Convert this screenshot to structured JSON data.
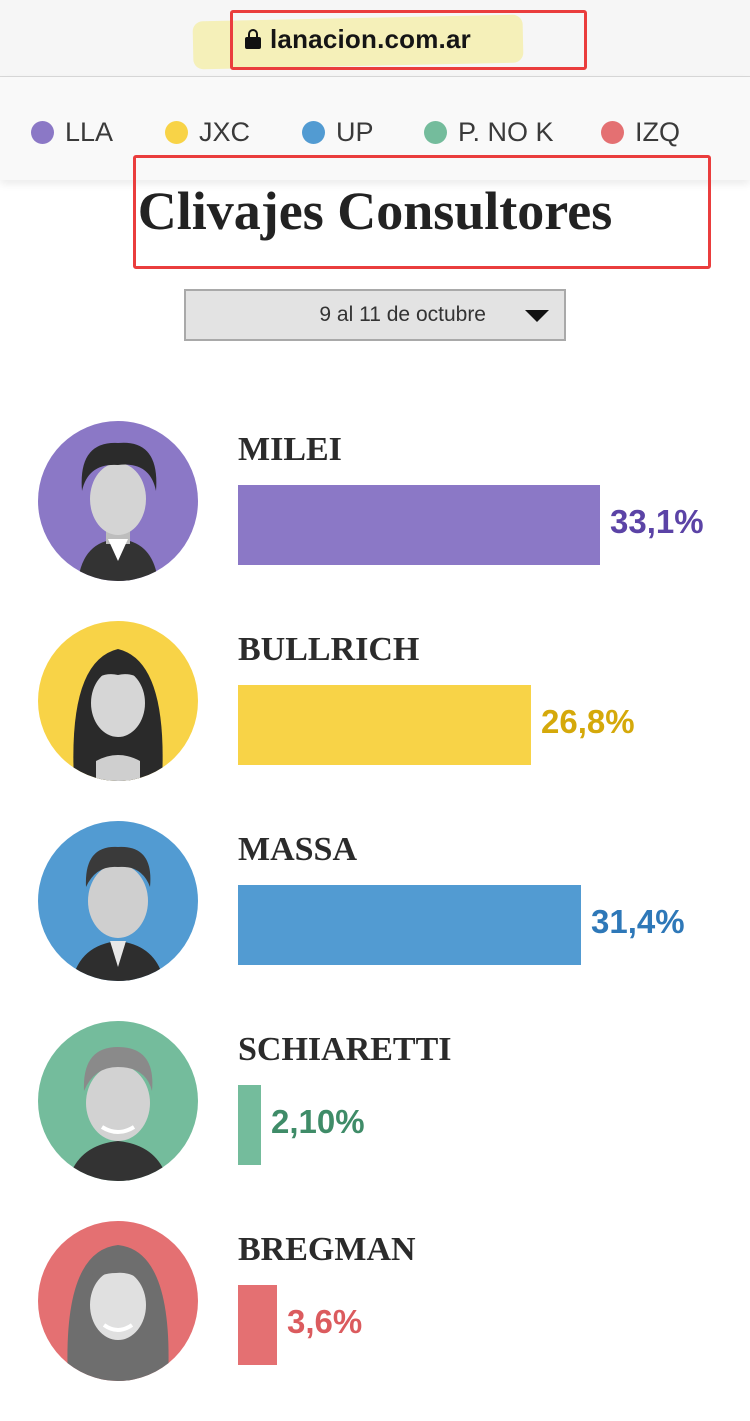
{
  "browser": {
    "url": "lanacion.com.ar"
  },
  "legend": [
    {
      "label": "LLA",
      "color": "#8b78c6"
    },
    {
      "label": "JXC",
      "color": "#f8d347"
    },
    {
      "label": "UP",
      "color": "#529bd2"
    },
    {
      "label": "P. NO K",
      "color": "#74bc9c"
    },
    {
      "label": "IZQ",
      "color": "#e47072"
    }
  ],
  "title": "Clivajes Consultores",
  "date_select": {
    "value": "9 al 11 de octubre"
  },
  "candidates": [
    {
      "name": "MILEI",
      "percent_label": "33,1%",
      "percent": 33.1,
      "bar_color": "#8b78c6",
      "label_color": "#5b43a6",
      "photo": "milei-portrait"
    },
    {
      "name": "BULLRICH",
      "percent_label": "26,8%",
      "percent": 26.8,
      "bar_color": "#f8d347",
      "label_color": "#d5a90a",
      "photo": "bullrich-portrait"
    },
    {
      "name": "MASSA",
      "percent_label": "31,4%",
      "percent": 31.4,
      "bar_color": "#529bd2",
      "label_color": "#2e78b8",
      "photo": "massa-portrait"
    },
    {
      "name": "SCHIARETTI",
      "percent_label": "2,10%",
      "percent": 2.1,
      "bar_color": "#74bc9c",
      "label_color": "#3f8c68",
      "photo": "schiaretti-portrait"
    },
    {
      "name": "BREGMAN",
      "percent_label": "3,6%",
      "percent": 3.6,
      "bar_color": "#e47072",
      "label_color": "#db5b5e",
      "photo": "bregman-portrait"
    }
  ]
}
